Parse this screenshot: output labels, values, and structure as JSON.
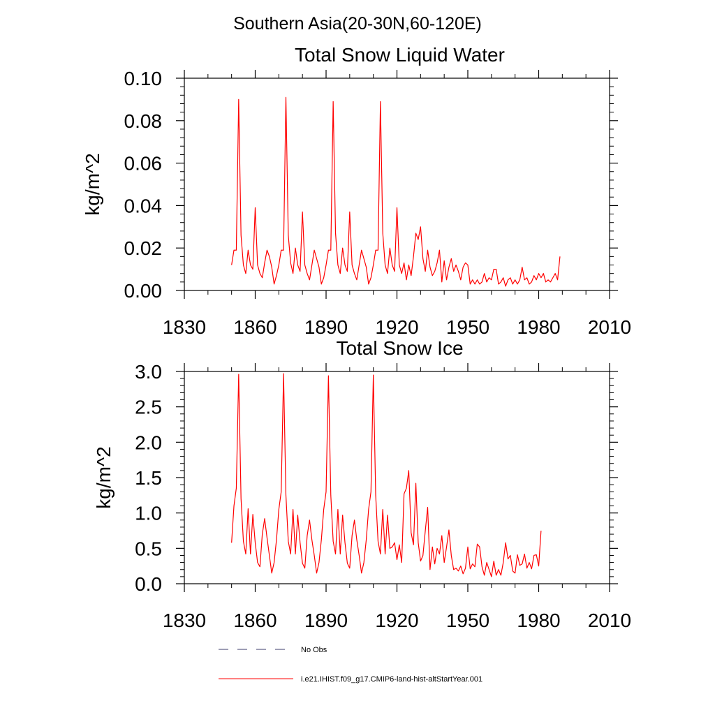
{
  "figure_title": "Southern Asia(20-30N,60-120E)",
  "legend": {
    "entries": [
      {
        "label": "No Obs",
        "style": "dashed",
        "color": "#3b3b6b"
      },
      {
        "label": "i.e21.IHIST.f09_g17.CMIP6-land-hist-altStartYear.001",
        "style": "solid",
        "color": "#ff0000"
      }
    ]
  },
  "chart_data": [
    {
      "type": "line",
      "title": "Total Snow Liquid Water",
      "xlabel": "",
      "ylabel": "kg/m^2",
      "xlim": [
        1830,
        2010
      ],
      "ylim": [
        0,
        0.1
      ],
      "xticks": [
        1830,
        1860,
        1890,
        1920,
        1950,
        1980,
        2010
      ],
      "xtick_labels": [
        "1830",
        "1860",
        "1890",
        "1920",
        "1950",
        "1980",
        "2010"
      ],
      "yticks": [
        0,
        0.02,
        0.04,
        0.06,
        0.08,
        0.1
      ],
      "ytick_labels": [
        "0.00",
        "0.02",
        "0.04",
        "0.06",
        "0.08",
        "0.10"
      ],
      "grid": false,
      "series": [
        {
          "name": "i.e21.IHIST.f09_g17.CMIP6-land-hist-altStartYear.001",
          "color": "#ff0000",
          "x_start": 1850,
          "x_step": 1,
          "values": [
            0.012,
            0.019,
            0.019,
            0.09,
            0.026,
            0.012,
            0.008,
            0.019,
            0.012,
            0.01,
            0.039,
            0.012,
            0.008,
            0.006,
            0.013,
            0.019,
            0.016,
            0.011,
            0.003,
            0.007,
            0.012,
            0.019,
            0.019,
            0.091,
            0.026,
            0.013,
            0.008,
            0.02,
            0.012,
            0.009,
            0.037,
            0.012,
            0.008,
            0.005,
            0.012,
            0.019,
            0.015,
            0.011,
            0.003,
            0.006,
            0.012,
            0.019,
            0.019,
            0.089,
            0.027,
            0.012,
            0.008,
            0.02,
            0.012,
            0.009,
            0.037,
            0.012,
            0.008,
            0.005,
            0.012,
            0.019,
            0.015,
            0.011,
            0.003,
            0.006,
            0.012,
            0.019,
            0.019,
            0.089,
            0.027,
            0.012,
            0.008,
            0.02,
            0.012,
            0.009,
            0.039,
            0.012,
            0.008,
            0.013,
            0.005,
            0.012,
            0.007,
            0.016,
            0.027,
            0.024,
            0.03,
            0.015,
            0.009,
            0.019,
            0.011,
            0.007,
            0.009,
            0.013,
            0.019,
            0.004,
            0.014,
            0.005,
            0.011,
            0.015,
            0.009,
            0.012,
            0.009,
            0.005,
            0.011,
            0.013,
            0.012,
            0.003,
            0.005,
            0.003,
            0.005,
            0.003,
            0.004,
            0.008,
            0.004,
            0.006,
            0.005,
            0.01,
            0.01,
            0.003,
            0.004,
            0.006,
            0.002,
            0.005,
            0.006,
            0.003,
            0.005,
            0.003,
            0.005,
            0.011,
            0.005,
            0.006,
            0.003,
            0.004,
            0.007,
            0.005,
            0.008,
            0.006,
            0.008,
            0.004,
            0.005,
            0.004,
            0.006,
            0.008,
            0.005,
            0.016
          ]
        }
      ]
    },
    {
      "type": "line",
      "title": "Total Snow Ice",
      "xlabel": "",
      "ylabel": "kg/m^2",
      "xlim": [
        1830,
        2010
      ],
      "ylim": [
        0,
        3.0
      ],
      "xticks": [
        1830,
        1860,
        1890,
        1920,
        1950,
        1980,
        2010
      ],
      "xtick_labels": [
        "1830",
        "1860",
        "1890",
        "1920",
        "1950",
        "1980",
        "2010"
      ],
      "yticks": [
        0,
        0.5,
        1.0,
        1.5,
        2.0,
        2.5,
        3.0
      ],
      "ytick_labels": [
        "0.0",
        "0.5",
        "1.0",
        "1.5",
        "2.0",
        "2.5",
        "3.0"
      ],
      "grid": false,
      "series": [
        {
          "name": "i.e21.IHIST.f09_g17.CMIP6-land-hist-altStartYear.001",
          "color": "#ff0000",
          "x_start": 1850,
          "x_step": 1,
          "values": [
            0.58,
            1.1,
            1.35,
            2.96,
            1.2,
            0.6,
            0.42,
            1.06,
            0.42,
            0.98,
            0.58,
            0.3,
            0.24,
            0.7,
            0.92,
            0.65,
            0.4,
            0.15,
            0.3,
            0.62,
            1.05,
            1.3,
            2.97,
            1.25,
            0.6,
            0.42,
            1.05,
            0.42,
            0.97,
            0.58,
            0.29,
            0.22,
            0.68,
            0.9,
            0.62,
            0.4,
            0.15,
            0.3,
            0.62,
            1.05,
            1.3,
            2.94,
            1.25,
            0.6,
            0.42,
            1.05,
            0.42,
            0.97,
            0.58,
            0.29,
            0.22,
            0.68,
            0.9,
            0.62,
            0.4,
            0.15,
            0.3,
            0.62,
            1.05,
            1.3,
            2.95,
            1.25,
            0.6,
            0.42,
            1.05,
            0.42,
            0.97,
            0.5,
            0.52,
            0.58,
            0.34,
            0.55,
            0.3,
            1.27,
            1.35,
            1.6,
            0.72,
            0.55,
            1.42,
            0.58,
            0.32,
            0.4,
            0.75,
            1.08,
            0.2,
            0.52,
            0.28,
            0.5,
            0.42,
            0.68,
            0.3,
            0.52,
            0.76,
            0.4,
            0.2,
            0.22,
            0.18,
            0.25,
            0.14,
            0.22,
            0.52,
            0.21,
            0.28,
            0.24,
            0.56,
            0.52,
            0.24,
            0.12,
            0.3,
            0.2,
            0.1,
            0.32,
            0.12,
            0.2,
            0.12,
            0.3,
            0.58,
            0.35,
            0.4,
            0.18,
            0.15,
            0.41,
            0.26,
            0.28,
            0.42,
            0.22,
            0.3,
            0.21,
            0.4,
            0.41,
            0.25,
            0.75
          ]
        }
      ]
    }
  ]
}
